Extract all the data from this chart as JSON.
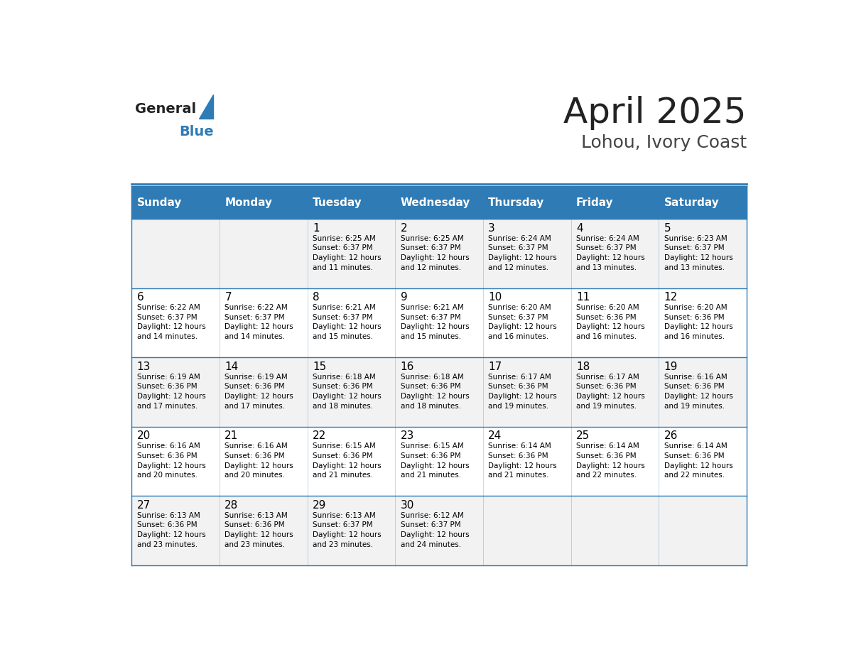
{
  "title": "April 2025",
  "subtitle": "Lohou, Ivory Coast",
  "days_of_week": [
    "Sunday",
    "Monday",
    "Tuesday",
    "Wednesday",
    "Thursday",
    "Friday",
    "Saturday"
  ],
  "header_bg": "#2E7BB5",
  "header_text": "#FFFFFF",
  "cell_bg_even": "#F2F2F2",
  "cell_bg_odd": "#FFFFFF",
  "cell_text": "#000000",
  "day_num_color": "#000000",
  "border_color": "#2E7BB5",
  "title_color": "#222222",
  "subtitle_color": "#444444",
  "logo_general_color": "#222222",
  "logo_blue_color": "#2E7BB5",
  "weeks": [
    [
      {
        "day": null,
        "text": ""
      },
      {
        "day": null,
        "text": ""
      },
      {
        "day": 1,
        "text": "Sunrise: 6:25 AM\nSunset: 6:37 PM\nDaylight: 12 hours\nand 11 minutes."
      },
      {
        "day": 2,
        "text": "Sunrise: 6:25 AM\nSunset: 6:37 PM\nDaylight: 12 hours\nand 12 minutes."
      },
      {
        "day": 3,
        "text": "Sunrise: 6:24 AM\nSunset: 6:37 PM\nDaylight: 12 hours\nand 12 minutes."
      },
      {
        "day": 4,
        "text": "Sunrise: 6:24 AM\nSunset: 6:37 PM\nDaylight: 12 hours\nand 13 minutes."
      },
      {
        "day": 5,
        "text": "Sunrise: 6:23 AM\nSunset: 6:37 PM\nDaylight: 12 hours\nand 13 minutes."
      }
    ],
    [
      {
        "day": 6,
        "text": "Sunrise: 6:22 AM\nSunset: 6:37 PM\nDaylight: 12 hours\nand 14 minutes."
      },
      {
        "day": 7,
        "text": "Sunrise: 6:22 AM\nSunset: 6:37 PM\nDaylight: 12 hours\nand 14 minutes."
      },
      {
        "day": 8,
        "text": "Sunrise: 6:21 AM\nSunset: 6:37 PM\nDaylight: 12 hours\nand 15 minutes."
      },
      {
        "day": 9,
        "text": "Sunrise: 6:21 AM\nSunset: 6:37 PM\nDaylight: 12 hours\nand 15 minutes."
      },
      {
        "day": 10,
        "text": "Sunrise: 6:20 AM\nSunset: 6:37 PM\nDaylight: 12 hours\nand 16 minutes."
      },
      {
        "day": 11,
        "text": "Sunrise: 6:20 AM\nSunset: 6:36 PM\nDaylight: 12 hours\nand 16 minutes."
      },
      {
        "day": 12,
        "text": "Sunrise: 6:20 AM\nSunset: 6:36 PM\nDaylight: 12 hours\nand 16 minutes."
      }
    ],
    [
      {
        "day": 13,
        "text": "Sunrise: 6:19 AM\nSunset: 6:36 PM\nDaylight: 12 hours\nand 17 minutes."
      },
      {
        "day": 14,
        "text": "Sunrise: 6:19 AM\nSunset: 6:36 PM\nDaylight: 12 hours\nand 17 minutes."
      },
      {
        "day": 15,
        "text": "Sunrise: 6:18 AM\nSunset: 6:36 PM\nDaylight: 12 hours\nand 18 minutes."
      },
      {
        "day": 16,
        "text": "Sunrise: 6:18 AM\nSunset: 6:36 PM\nDaylight: 12 hours\nand 18 minutes."
      },
      {
        "day": 17,
        "text": "Sunrise: 6:17 AM\nSunset: 6:36 PM\nDaylight: 12 hours\nand 19 minutes."
      },
      {
        "day": 18,
        "text": "Sunrise: 6:17 AM\nSunset: 6:36 PM\nDaylight: 12 hours\nand 19 minutes."
      },
      {
        "day": 19,
        "text": "Sunrise: 6:16 AM\nSunset: 6:36 PM\nDaylight: 12 hours\nand 19 minutes."
      }
    ],
    [
      {
        "day": 20,
        "text": "Sunrise: 6:16 AM\nSunset: 6:36 PM\nDaylight: 12 hours\nand 20 minutes."
      },
      {
        "day": 21,
        "text": "Sunrise: 6:16 AM\nSunset: 6:36 PM\nDaylight: 12 hours\nand 20 minutes."
      },
      {
        "day": 22,
        "text": "Sunrise: 6:15 AM\nSunset: 6:36 PM\nDaylight: 12 hours\nand 21 minutes."
      },
      {
        "day": 23,
        "text": "Sunrise: 6:15 AM\nSunset: 6:36 PM\nDaylight: 12 hours\nand 21 minutes."
      },
      {
        "day": 24,
        "text": "Sunrise: 6:14 AM\nSunset: 6:36 PM\nDaylight: 12 hours\nand 21 minutes."
      },
      {
        "day": 25,
        "text": "Sunrise: 6:14 AM\nSunset: 6:36 PM\nDaylight: 12 hours\nand 22 minutes."
      },
      {
        "day": 26,
        "text": "Sunrise: 6:14 AM\nSunset: 6:36 PM\nDaylight: 12 hours\nand 22 minutes."
      }
    ],
    [
      {
        "day": 27,
        "text": "Sunrise: 6:13 AM\nSunset: 6:36 PM\nDaylight: 12 hours\nand 23 minutes."
      },
      {
        "day": 28,
        "text": "Sunrise: 6:13 AM\nSunset: 6:36 PM\nDaylight: 12 hours\nand 23 minutes."
      },
      {
        "day": 29,
        "text": "Sunrise: 6:13 AM\nSunset: 6:37 PM\nDaylight: 12 hours\nand 23 minutes."
      },
      {
        "day": 30,
        "text": "Sunrise: 6:12 AM\nSunset: 6:37 PM\nDaylight: 12 hours\nand 24 minutes."
      },
      {
        "day": null,
        "text": ""
      },
      {
        "day": null,
        "text": ""
      },
      {
        "day": null,
        "text": ""
      }
    ]
  ]
}
